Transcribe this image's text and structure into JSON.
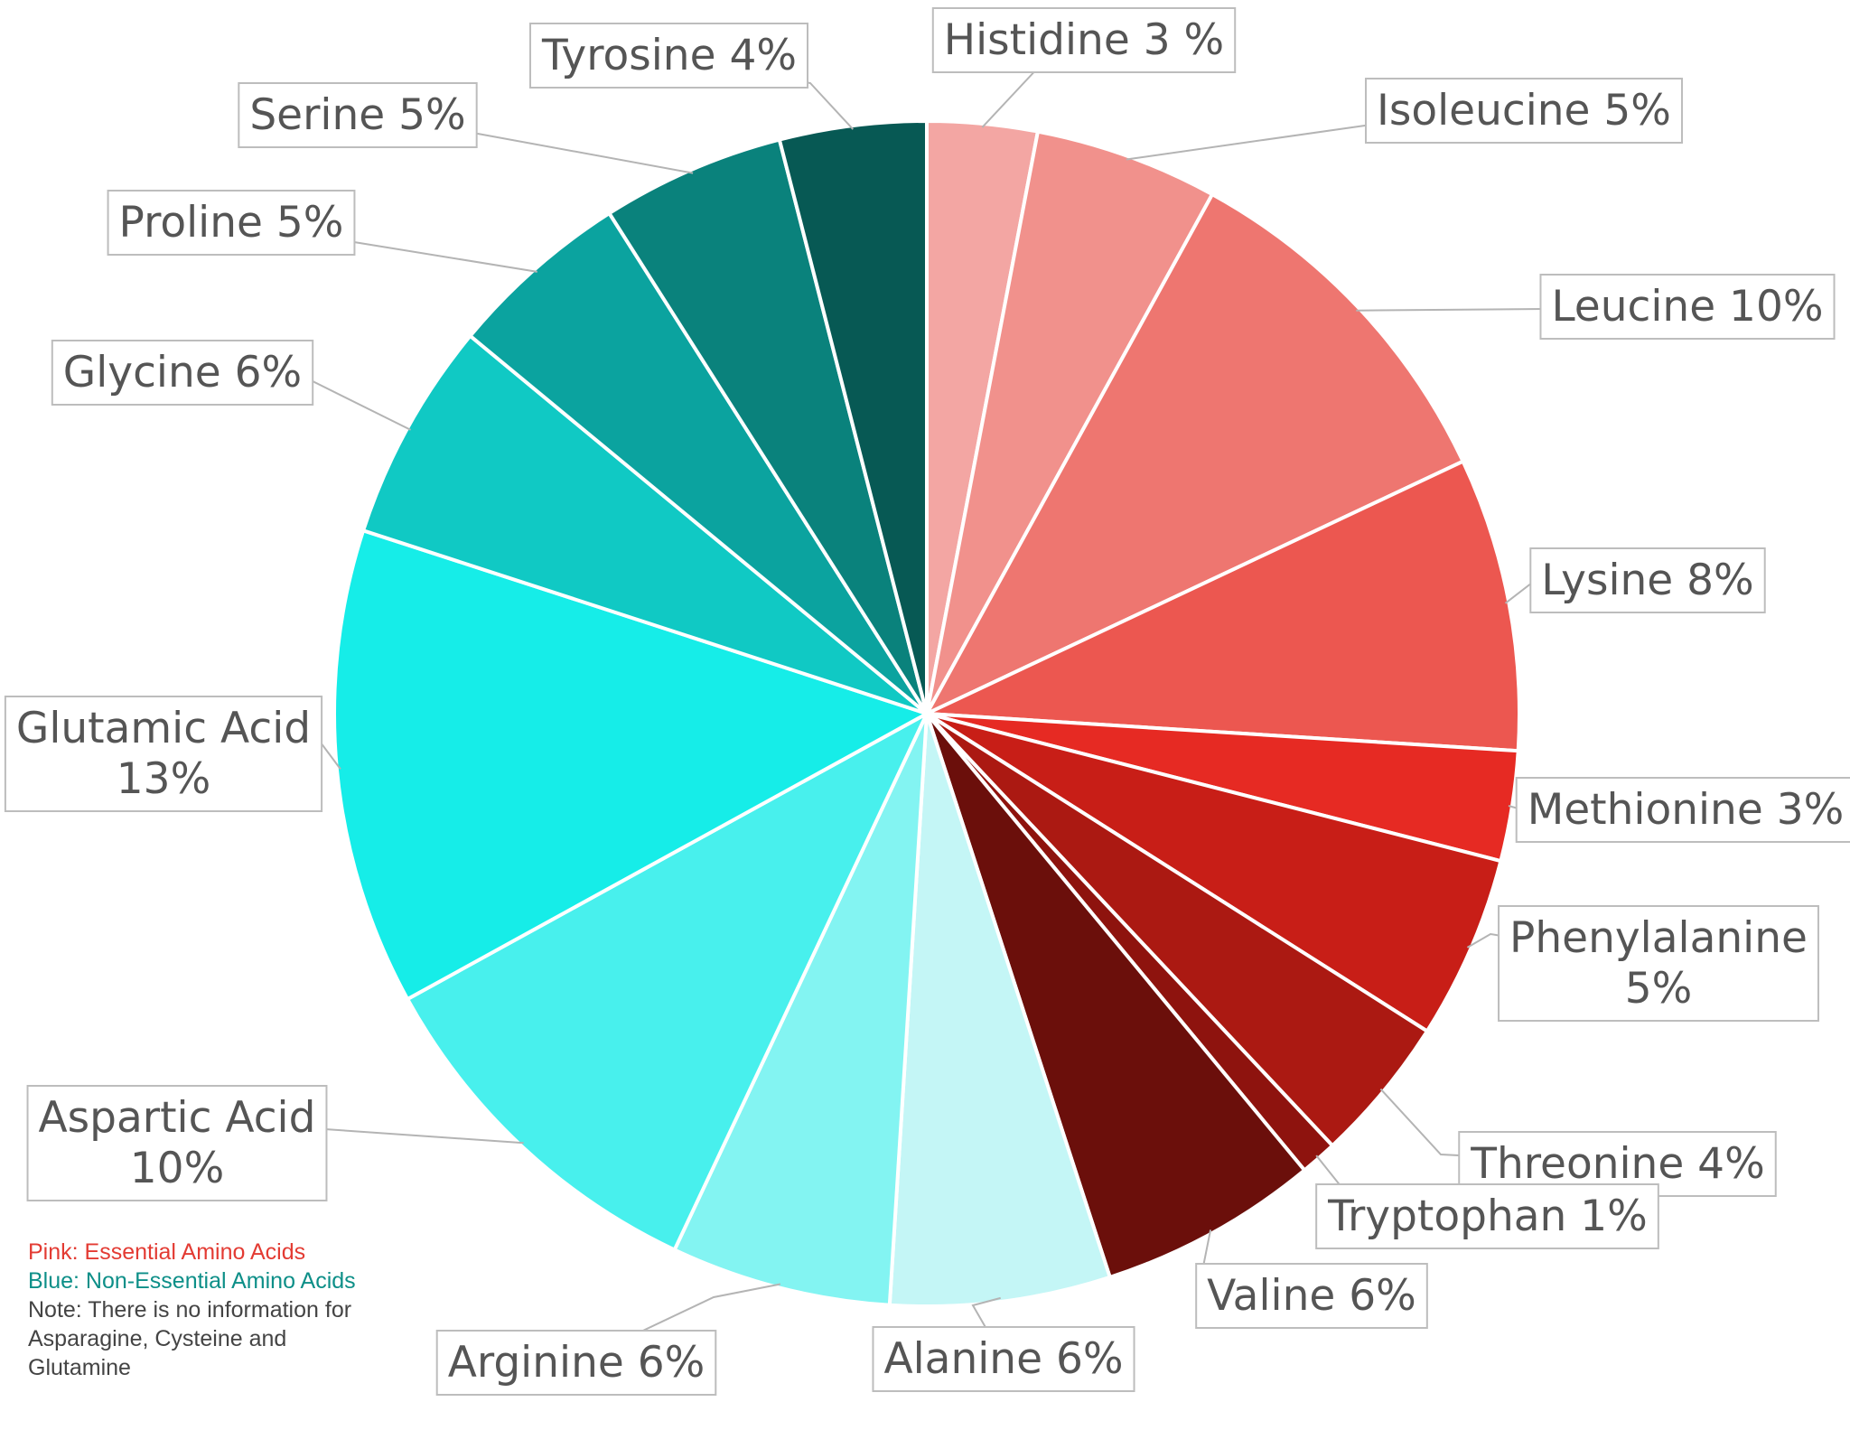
{
  "chart_data": {
    "type": "pie",
    "slices": [
      {
        "label": "Histidine 3 %",
        "value": 3,
        "color": "#f3a6a3"
      },
      {
        "label": "Isoleucine 5%",
        "value": 5,
        "color": "#f1918c"
      },
      {
        "label": "Leucine 10%",
        "value": 10,
        "color": "#ee7670"
      },
      {
        "label": "Lysine 8%",
        "value": 8,
        "color": "#ec5750"
      },
      {
        "label": "Methionine 3%",
        "value": 3,
        "color": "#e62a23"
      },
      {
        "label": "Phenylalanine\n5%",
        "value": 5,
        "color": "#c81e17"
      },
      {
        "label": "Threonine 4%",
        "value": 4,
        "color": "#ab1912"
      },
      {
        "label": "Tryptophan 1%",
        "value": 1,
        "color": "#8e130e"
      },
      {
        "label": "Valine 6%",
        "value": 6,
        "color": "#6b0f0b"
      },
      {
        "label": "Alanine 6%",
        "value": 6,
        "color": "#c4f6f6"
      },
      {
        "label": "Arginine 6%",
        "value": 6,
        "color": "#83f4f2"
      },
      {
        "label": "Aspartic Acid\n10%",
        "value": 10,
        "color": "#48f0ed"
      },
      {
        "label": "Glutamic Acid\n13%",
        "value": 13,
        "color": "#16ede8"
      },
      {
        "label": "Glycine 6%",
        "value": 6,
        "color": "#10c9c4"
      },
      {
        "label": "Proline 5%",
        "value": 5,
        "color": "#0ba39f"
      },
      {
        "label": "Serine 5%",
        "value": 5,
        "color": "#0a827c"
      },
      {
        "label": "Tyrosine 4%",
        "value": 4,
        "color": "#075954"
      }
    ],
    "notes": [
      {
        "text": "Pink: Essential Amino Acids",
        "color": "#e33b33"
      },
      {
        "text": "Blue: Non-Essential Amino Acids",
        "color": "#0d8f88"
      },
      {
        "text": "Note: There is no information for Asparagine, Cysteine and Glutamine",
        "color": "#444444"
      }
    ]
  }
}
